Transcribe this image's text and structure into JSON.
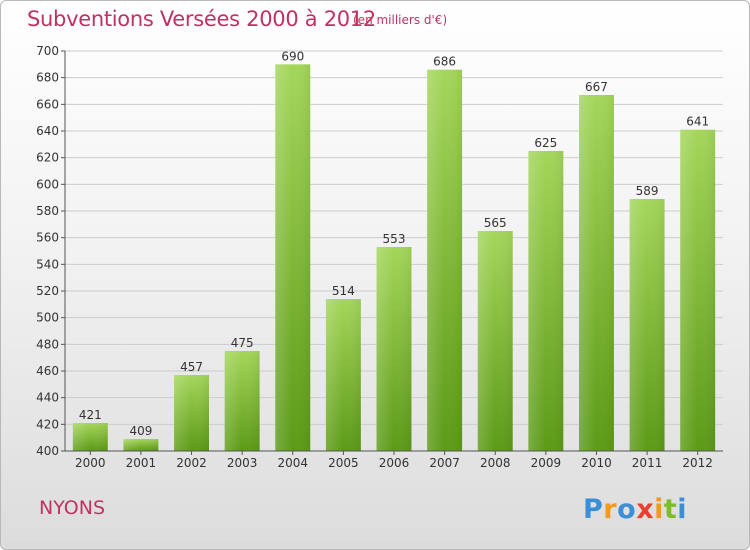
{
  "header": {
    "title": "Subventions Versées 2000 à 2012",
    "subtitle": "(en milliers d'€)"
  },
  "footer": {
    "place": "NYONS",
    "logo_text": "Proxiti"
  },
  "colors": {
    "title": "#c0325f",
    "bar_light": "#9fd152",
    "bar_dark": "#5c9a17",
    "axis": "#333333"
  },
  "chart_data": {
    "type": "bar",
    "title": "Subventions Versées 2000 à 2012",
    "subtitle": "(en milliers d'€)",
    "xlabel": "",
    "ylabel": "",
    "categories": [
      "2000",
      "2001",
      "2002",
      "2003",
      "2004",
      "2005",
      "2006",
      "2007",
      "2008",
      "2009",
      "2010",
      "2011",
      "2012"
    ],
    "values": [
      421,
      409,
      457,
      475,
      690,
      514,
      553,
      686,
      565,
      625,
      667,
      589,
      641
    ],
    "ylim": [
      400,
      700
    ],
    "yticks": [
      400,
      420,
      440,
      460,
      480,
      500,
      520,
      540,
      560,
      580,
      600,
      620,
      640,
      660,
      680,
      700
    ],
    "grid": true,
    "legend": "none",
    "data_labels": true
  }
}
